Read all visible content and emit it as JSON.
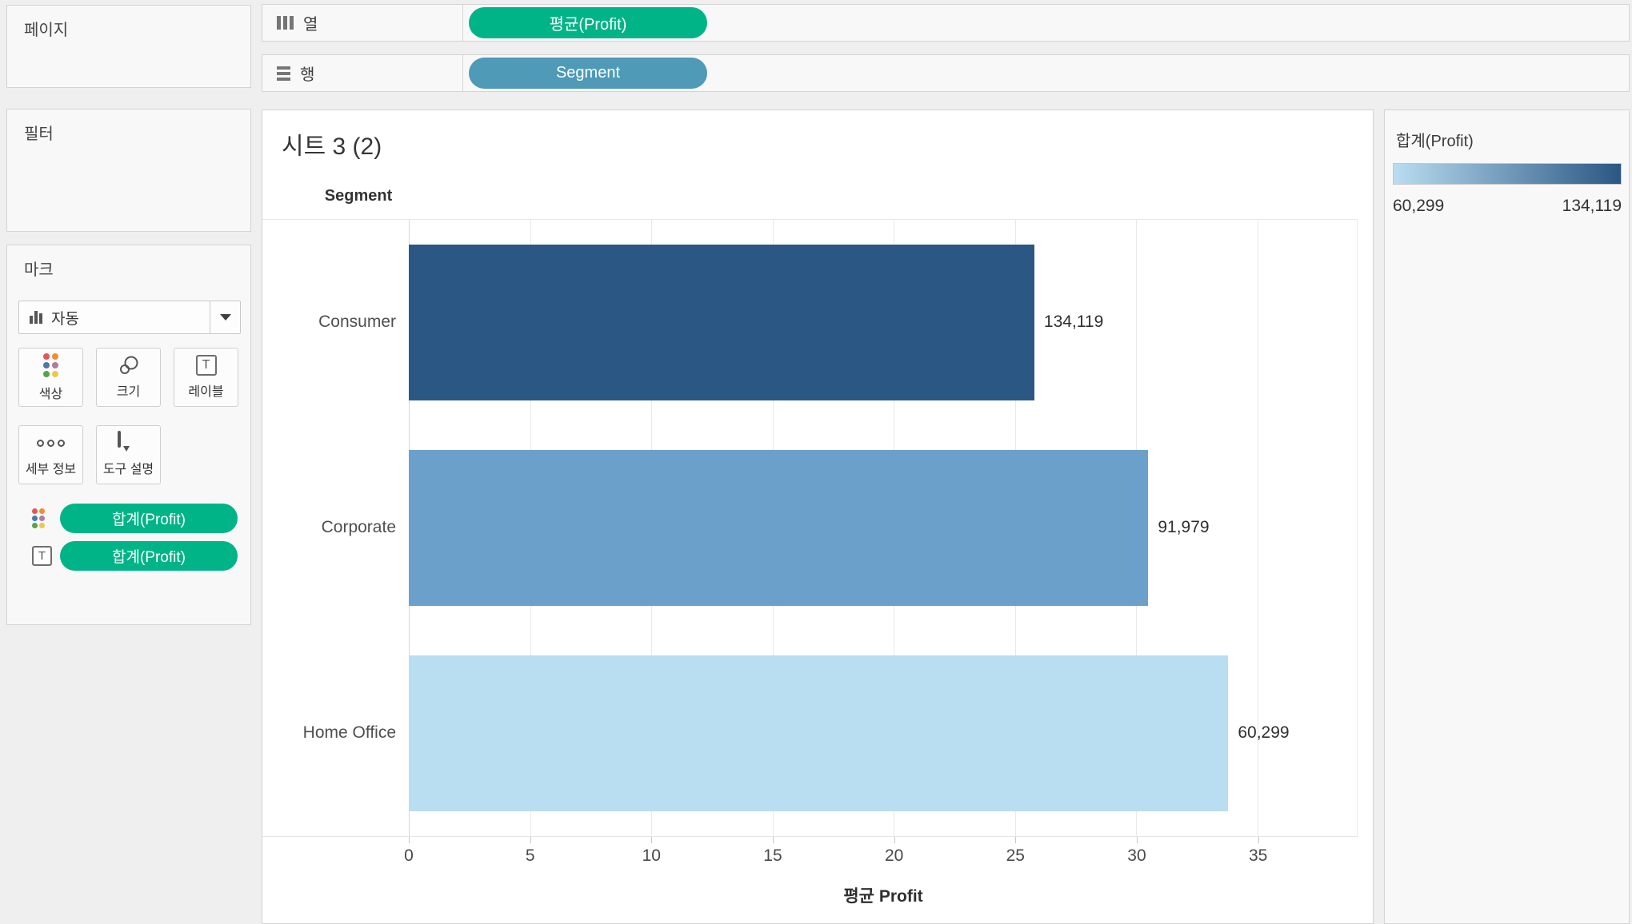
{
  "colors": {
    "pill_green": "#00b487",
    "pill_blue": "#4e9ab7",
    "bar_dark": "#2a5783",
    "bar_mid": "#6ba0ca",
    "bar_light": "#b9ddf1"
  },
  "shelves": {
    "pages": {
      "label": "페이지"
    },
    "filters": {
      "label": "필터"
    },
    "columns": {
      "label": "열",
      "pill": "평균(Profit)"
    },
    "rows": {
      "label": "행",
      "pill": "Segment"
    }
  },
  "marks": {
    "title": "마크",
    "mark_type": "자동",
    "buttons": {
      "color": "색상",
      "size": "크기",
      "label": "레이블",
      "detail": "세부 정보",
      "tooltip": "도구 설명"
    },
    "pills": [
      {
        "icon": "color-dots",
        "label": "합계(Profit)"
      },
      {
        "icon": "text",
        "label": "합계(Profit)"
      }
    ]
  },
  "sheet": {
    "title": "시트 3 (2)",
    "row_header": "Segment"
  },
  "legend": {
    "title": "합계(Profit)",
    "min_label": "60,299",
    "max_label": "134,119",
    "gradient_start": "#b9ddf1",
    "gradient_end": "#2a5783"
  },
  "chart_data": {
    "type": "bar",
    "orientation": "horizontal",
    "title": "시트 3 (2)",
    "categories": [
      "Consumer",
      "Corporate",
      "Home Office"
    ],
    "values": [
      25.8,
      30.5,
      33.8
    ],
    "series_name": "평균(Profit)",
    "bar_labels": [
      "134,119",
      "91,979",
      "60,299"
    ],
    "bar_colors": [
      "#2a5783",
      "#6ba0ca",
      "#b9ddf1"
    ],
    "color_by": "합계(Profit)",
    "xlabel": "평균 Profit",
    "x_ticks": [
      0,
      5,
      10,
      15,
      20,
      25,
      30,
      35
    ],
    "x_max": 39.1,
    "legend_range": {
      "min": "60,299",
      "max": "134,119"
    },
    "grid": true
  }
}
